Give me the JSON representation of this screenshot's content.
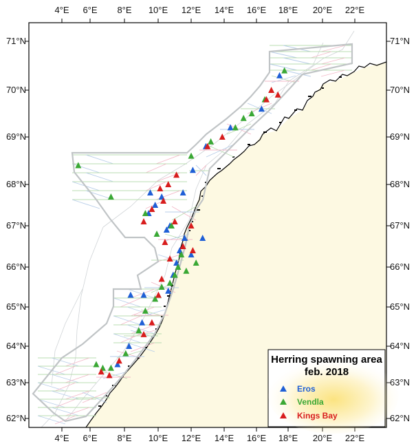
{
  "map": {
    "lon_ticks": [
      "4°E",
      "6°E",
      "8°E",
      "10°E",
      "12°E",
      "14°E",
      "16°E",
      "18°E",
      "20°E",
      "22°E"
    ],
    "lat_ticks": [
      "71°N",
      "70°N",
      "69°N",
      "68°N",
      "67°N",
      "66°N",
      "65°N",
      "64°N",
      "63°N",
      "62°N"
    ],
    "land_color": "#fdf9e2",
    "coastline_color": "#000000",
    "depth_contour_color": "#cfd3d6",
    "survey_boundary_color": "#c0c4c6",
    "transect_colors": [
      "#b8dcb0",
      "#b7cde8",
      "#f3b9c8"
    ]
  },
  "legend": {
    "title_line1": "Herring spawning area",
    "title_line2": "feb. 2018",
    "glow_color": "#fbe27a",
    "items": [
      {
        "label": "Eros",
        "color": "#1f5fd6"
      },
      {
        "label": "Vendla",
        "color": "#3aa835"
      },
      {
        "label": "Kings Bay",
        "color": "#d81d1d"
      }
    ]
  },
  "stations": {
    "eros": [
      [
        9.4,
        67.8
      ],
      [
        10.1,
        67.7
      ],
      [
        9.7,
        67.5
      ],
      [
        9.3,
        67.3
      ],
      [
        10.4,
        66.9
      ],
      [
        10.6,
        67.0
      ],
      [
        11.4,
        67.8
      ],
      [
        12.0,
        68.3
      ],
      [
        12.8,
        68.8
      ],
      [
        14.3,
        69.2
      ],
      [
        16.2,
        69.6
      ],
      [
        17.3,
        70.3
      ],
      [
        11.5,
        66.7
      ],
      [
        11.2,
        66.4
      ],
      [
        11.0,
        66.1
      ],
      [
        10.8,
        65.8
      ],
      [
        10.5,
        65.4
      ],
      [
        9.0,
        65.3
      ],
      [
        8.2,
        65.3
      ],
      [
        8.9,
        64.6
      ],
      [
        8.1,
        64.0
      ],
      [
        7.4,
        63.5
      ],
      [
        12.6,
        66.7
      ],
      [
        11.9,
        66.3
      ]
    ],
    "vendla": [
      [
        5.0,
        68.4
      ],
      [
        7.0,
        67.7
      ],
      [
        9.1,
        67.3
      ],
      [
        9.8,
        66.8
      ],
      [
        10.7,
        67.0
      ],
      [
        11.9,
        68.6
      ],
      [
        13.1,
        68.9
      ],
      [
        14.6,
        69.2
      ],
      [
        15.1,
        69.4
      ],
      [
        15.6,
        69.5
      ],
      [
        16.4,
        69.8
      ],
      [
        17.6,
        70.4
      ],
      [
        11.3,
        66.3
      ],
      [
        11.1,
        66.0
      ],
      [
        10.9,
        65.8
      ],
      [
        10.6,
        65.6
      ],
      [
        10.1,
        65.5
      ],
      [
        9.7,
        65.2
      ],
      [
        9.1,
        64.9
      ],
      [
        8.7,
        64.4
      ],
      [
        7.9,
        63.8
      ],
      [
        7.0,
        63.4
      ],
      [
        6.5,
        63.4
      ],
      [
        6.1,
        63.5
      ],
      [
        12.2,
        66.1
      ],
      [
        11.6,
        65.9
      ]
    ],
    "kingsbay": [
      [
        10.0,
        67.9
      ],
      [
        10.5,
        68.0
      ],
      [
        11.0,
        68.2
      ],
      [
        10.2,
        67.6
      ],
      [
        9.5,
        67.4
      ],
      [
        9.0,
        67.1
      ],
      [
        10.9,
        67.1
      ],
      [
        11.9,
        67.0
      ],
      [
        12.9,
        68.8
      ],
      [
        13.8,
        69.0
      ],
      [
        16.5,
        69.8
      ],
      [
        16.8,
        70.0
      ],
      [
        17.2,
        69.9
      ],
      [
        11.4,
        66.5
      ],
      [
        12.0,
        66.4
      ],
      [
        10.3,
        66.6
      ],
      [
        10.6,
        66.2
      ],
      [
        10.1,
        65.7
      ],
      [
        9.9,
        65.3
      ],
      [
        9.5,
        64.6
      ],
      [
        9.0,
        64.3
      ],
      [
        7.5,
        63.6
      ],
      [
        6.9,
        63.2
      ],
      [
        6.4,
        63.3
      ]
    ]
  }
}
